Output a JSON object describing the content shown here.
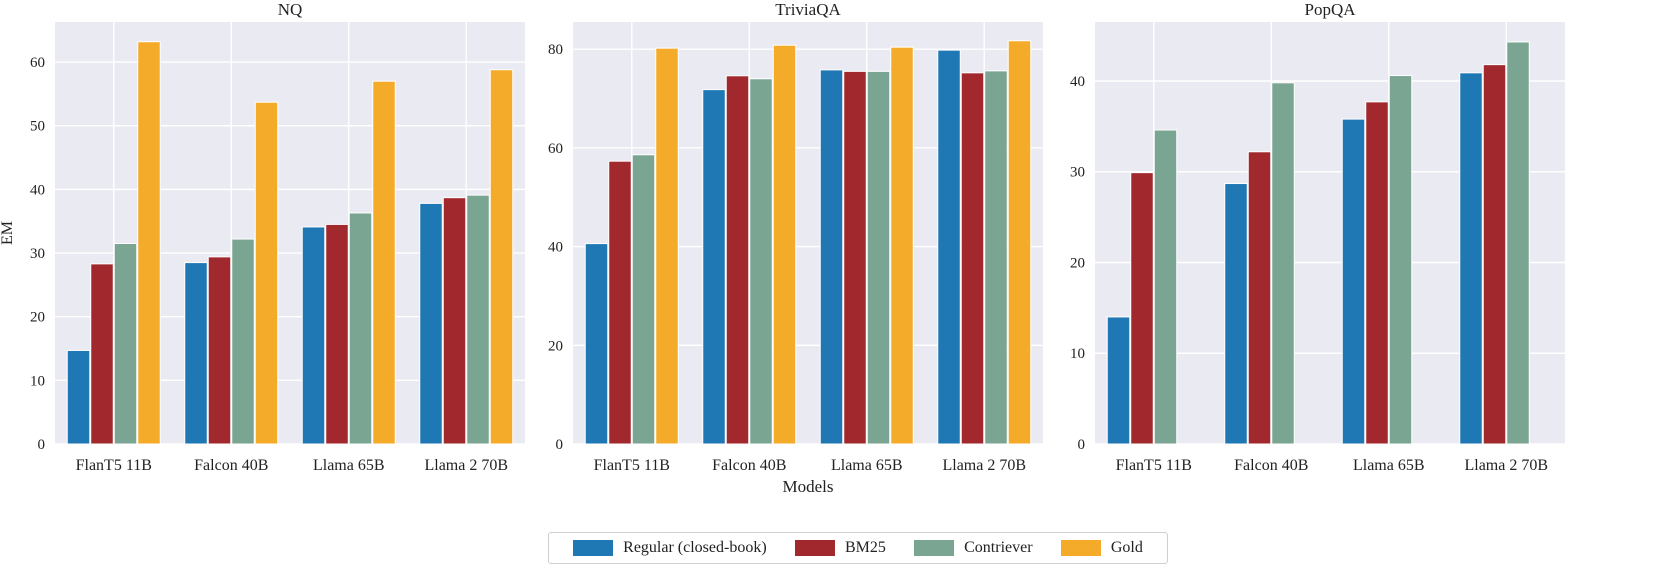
{
  "chart_data": [
    {
      "type": "bar",
      "title": "NQ",
      "ylabel": "EM",
      "xlabel": "",
      "categories": [
        "FlanT5 11B",
        "Falcon 40B",
        "Llama 65B",
        "Llama 2 70B"
      ],
      "ylim": [
        0,
        66.3
      ],
      "yticks": [
        0,
        10,
        20,
        30,
        40,
        50,
        60
      ],
      "series": [
        {
          "name": "Regular (closed-book)",
          "values": [
            14.7,
            28.5,
            34.1,
            37.8
          ]
        },
        {
          "name": "BM25",
          "values": [
            28.3,
            29.4,
            34.5,
            38.7
          ]
        },
        {
          "name": "Contriever",
          "values": [
            31.5,
            32.2,
            36.3,
            39.1
          ]
        },
        {
          "name": "Gold",
          "values": [
            63.2,
            53.7,
            57.0,
            58.8
          ]
        }
      ]
    },
    {
      "type": "bar",
      "title": "TriviaQA",
      "ylabel": "",
      "xlabel": "Models",
      "categories": [
        "FlanT5 11B",
        "Falcon 40B",
        "Llama 65B",
        "Llama 2 70B"
      ],
      "ylim": [
        0,
        85.5
      ],
      "yticks": [
        0,
        20,
        40,
        60,
        80
      ],
      "series": [
        {
          "name": "Regular (closed-book)",
          "values": [
            40.6,
            71.8,
            75.8,
            79.8
          ]
        },
        {
          "name": "BM25",
          "values": [
            57.3,
            74.6,
            75.5,
            75.2
          ]
        },
        {
          "name": "Contriever",
          "values": [
            58.6,
            74.0,
            75.5,
            75.6
          ]
        },
        {
          "name": "Gold",
          "values": [
            80.2,
            80.8,
            80.4,
            81.7
          ]
        }
      ]
    },
    {
      "type": "bar",
      "title": "PopQA",
      "ylabel": "",
      "xlabel": "",
      "categories": [
        "FlanT5 11B",
        "Falcon 40B",
        "Llama 65B",
        "Llama 2 70B"
      ],
      "ylim": [
        0,
        46.5
      ],
      "yticks": [
        0,
        10,
        20,
        30,
        40
      ],
      "series": [
        {
          "name": "Regular (closed-book)",
          "values": [
            14.0,
            28.7,
            35.8,
            40.9
          ]
        },
        {
          "name": "BM25",
          "values": [
            29.9,
            32.2,
            37.7,
            41.8
          ]
        },
        {
          "name": "Contriever",
          "values": [
            34.6,
            39.8,
            40.6,
            44.3
          ]
        },
        {
          "name": "Gold",
          "values": [
            null,
            null,
            null,
            null
          ]
        }
      ]
    }
  ],
  "legend": {
    "placement": "bottom-center",
    "items": [
      {
        "label": "Regular (closed-book)",
        "color": "#1f77b4"
      },
      {
        "label": "BM25",
        "color": "#a1282d"
      },
      {
        "label": "Contriever",
        "color": "#7aa592"
      },
      {
        "label": "Gold",
        "color": "#f5ab2a"
      }
    ]
  },
  "style": {
    "plot_background": "#eaeaf2",
    "grid_color": "#ffffff",
    "grid": true
  }
}
